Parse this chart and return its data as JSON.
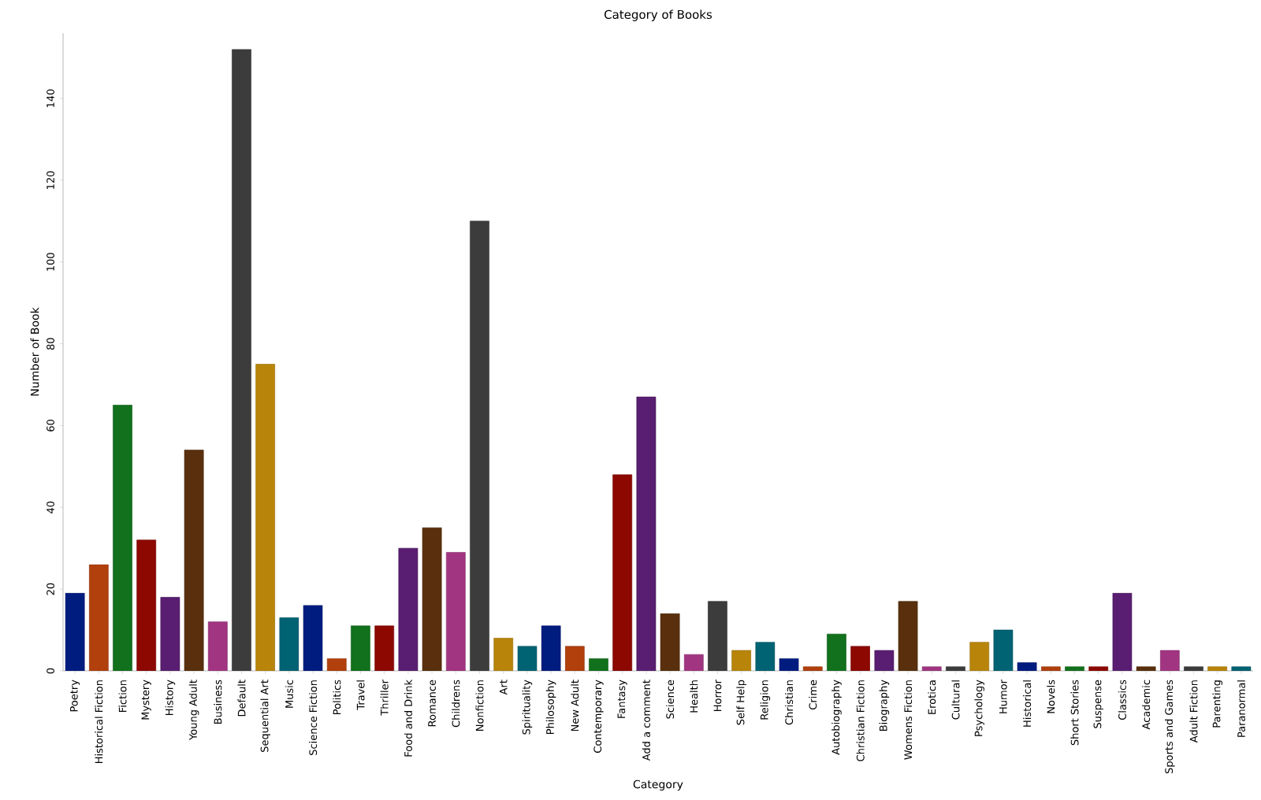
{
  "chart_data": {
    "type": "bar",
    "title": "Category of Books",
    "xlabel": "Category",
    "ylabel": "Number of Book",
    "categories": [
      "Poetry",
      "Historical Fiction",
      "Fiction",
      "Mystery",
      "History",
      "Young Adult",
      "Business",
      "Default",
      "Sequential Art",
      "Music",
      "Science Fiction",
      "Politics",
      "Travel",
      "Thriller",
      "Food and Drink",
      "Romance",
      "Childrens",
      "Nonfiction",
      "Art",
      "Spirituality",
      "Philosophy",
      "New Adult",
      "Contemporary",
      "Fantasy",
      "Add a comment",
      "Science",
      "Health",
      "Horror",
      "Self Help",
      "Religion",
      "Christian",
      "Crime",
      "Autobiography",
      "Christian Fiction",
      "Biography",
      "Womens Fiction",
      "Erotica",
      "Cultural",
      "Psychology",
      "Humor",
      "Historical",
      "Novels",
      "Short Stories",
      "Suspense",
      "Classics",
      "Academic",
      "Sports and Games",
      "Adult Fiction",
      "Parenting",
      "Paranormal"
    ],
    "values": [
      19,
      26,
      65,
      32,
      18,
      54,
      12,
      152,
      75,
      13,
      16,
      3,
      11,
      11,
      30,
      35,
      29,
      110,
      8,
      6,
      11,
      6,
      3,
      48,
      67,
      14,
      4,
      17,
      5,
      7,
      3,
      1,
      9,
      6,
      5,
      17,
      1,
      1,
      7,
      10,
      2,
      1,
      1,
      1,
      19,
      1,
      5,
      1,
      1,
      1
    ],
    "colors": [
      "#001c7f",
      "#b1400d",
      "#12711c",
      "#8c0800",
      "#591e71",
      "#592f0d",
      "#a23582",
      "#3c3c3c",
      "#b8850a",
      "#006374",
      "#001c7f",
      "#b1400d",
      "#12711c",
      "#8c0800",
      "#591e71",
      "#592f0d",
      "#a23582",
      "#3c3c3c",
      "#b8850a",
      "#006374",
      "#001c7f",
      "#b1400d",
      "#12711c",
      "#8c0800",
      "#591e71",
      "#592f0d",
      "#a23582",
      "#3c3c3c",
      "#b8850a",
      "#006374",
      "#001c7f",
      "#b1400d",
      "#12711c",
      "#8c0800",
      "#591e71",
      "#592f0d",
      "#a23582",
      "#3c3c3c",
      "#b8850a",
      "#006374",
      "#001c7f",
      "#b1400d",
      "#12711c",
      "#8c0800",
      "#591e71",
      "#592f0d",
      "#a23582",
      "#3c3c3c",
      "#b8850a",
      "#006374"
    ],
    "ylim": [
      0,
      156
    ],
    "yticks": [
      0,
      20,
      40,
      60,
      80,
      100,
      120,
      140
    ]
  }
}
